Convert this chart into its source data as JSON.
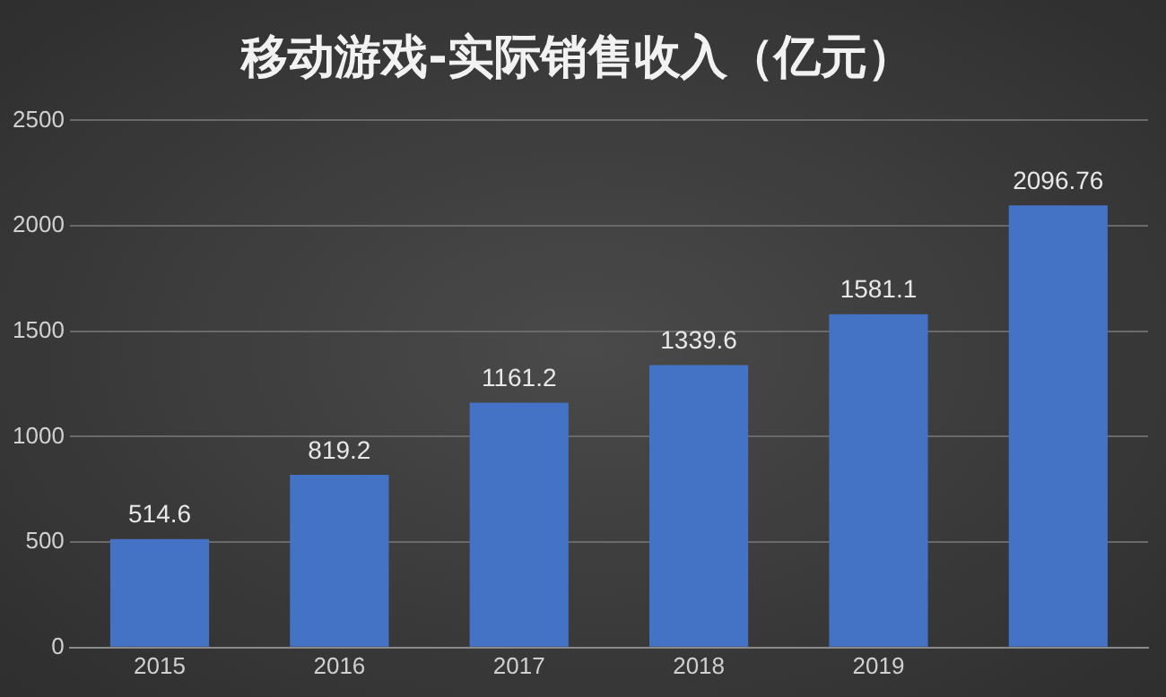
{
  "chart_data": {
    "type": "bar",
    "title": "移动游戏-实际销售收入（亿元）",
    "categories": [
      "2015",
      "2016",
      "2017",
      "2018",
      "2019",
      null
    ],
    "values": [
      514.6,
      819.2,
      1161.2,
      1339.6,
      1581.1,
      2096.76
    ],
    "color": "#4472c4",
    "ylim": [
      0,
      2500
    ],
    "yticks": [
      0,
      500,
      1000,
      1500,
      2000,
      2500
    ],
    "grid": "y",
    "data_labels": true
  }
}
